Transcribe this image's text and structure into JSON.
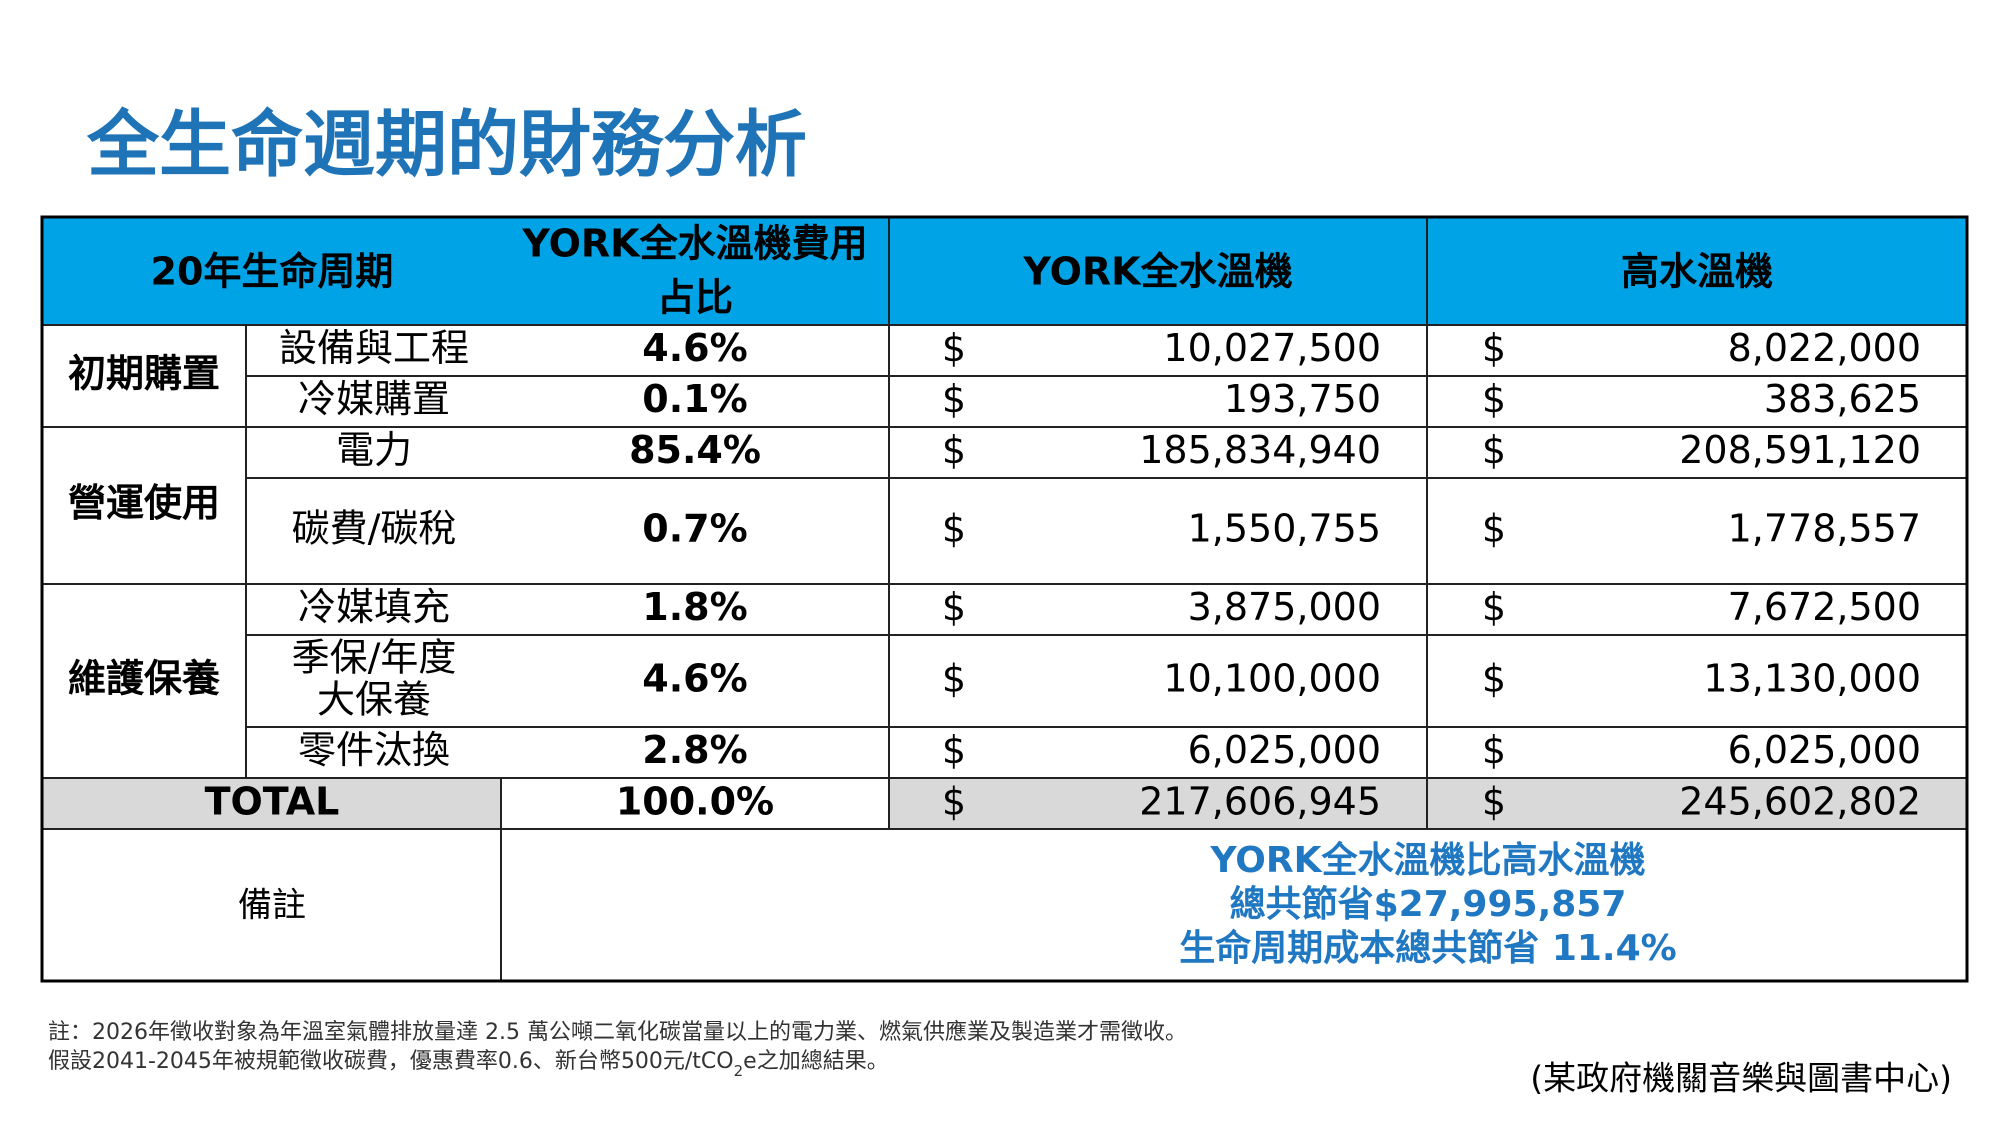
{
  "title": "全生命週期的財務分析",
  "table": {
    "header": {
      "period": "20年生命周期",
      "share": [
        "YORK全水溫機費用",
        "占比"
      ],
      "york": "YORK全水溫機",
      "high": "高水溫機"
    },
    "currency": "$",
    "groups": [
      {
        "label": "初期購置",
        "rows": [
          {
            "item": "設備與工程",
            "share": "4.6%",
            "york": "10,027,500",
            "high": "8,022,000"
          },
          {
            "item": "冷媒購置",
            "share": "0.1%",
            "york": "193,750",
            "high": "383,625"
          }
        ]
      },
      {
        "label": "營運使用",
        "rows": [
          {
            "item": "電力",
            "share": "85.4%",
            "york": "185,834,940",
            "high": "208,591,120"
          },
          {
            "item": "碳費/碳稅",
            "share": "0.7%",
            "york": "1,550,755",
            "high": "1,778,557"
          }
        ]
      },
      {
        "label": "維護保養",
        "rows": [
          {
            "item": "冷媒填充",
            "share": "1.8%",
            "york": "3,875,000",
            "high": "7,672,500"
          },
          {
            "item": [
              "季保/年度",
              "大保養"
            ],
            "share": "4.6%",
            "york": "10,100,000",
            "high": "13,130,000"
          },
          {
            "item": "零件汰換",
            "share": "2.8%",
            "york": "6,025,000",
            "high": "6,025,000"
          }
        ]
      }
    ],
    "total": {
      "label": "TOTAL",
      "share": "100.0%",
      "york": "217,606,945",
      "high": "245,602,802"
    },
    "remark": {
      "label": "備註",
      "lines": [
        "YORK全水溫機比高水溫機",
        "總共節省$27,995,857",
        "生命周期成本總共節省 11.4%"
      ]
    }
  },
  "notes": [
    "註：2026年徵收對象為年溫室氣體排放量達 2.5 萬公噸二氧化碳當量以上的電力業、燃氣供應業及製造業才需徵收。",
    [
      "假設2041-2045年被規範徵收碳費，優惠費率0.6、新台幣500元/tCO",
      "2",
      "e之加總結果。"
    ]
  ],
  "source": "(某政府機關音樂與圖書中心)"
}
